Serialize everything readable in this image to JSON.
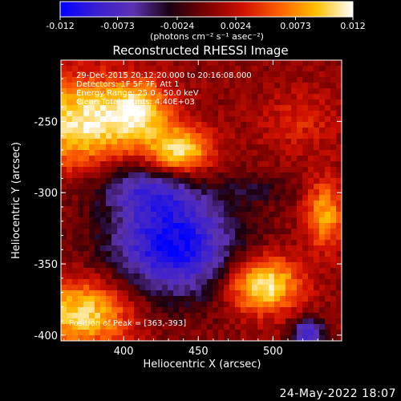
{
  "chart_data": {
    "type": "heatmap",
    "title": "Reconstructed RHESSI Image",
    "xlabel": "Heliocentric X (arcsec)",
    "ylabel": "Heliocentric Y (arcsec)",
    "xlim": [
      358,
      546
    ],
    "ylim": [
      -404,
      -207
    ],
    "x_ticks": [
      400,
      450,
      500
    ],
    "y_ticks": [
      -250,
      -300,
      -350,
      -400
    ],
    "colorbar": {
      "ticks": [
        "-0.012",
        "-0.0073",
        "-0.0024",
        "0.0024",
        "0.0073",
        "0.012"
      ],
      "tick_values": [
        -0.012,
        -0.0073,
        -0.0024,
        0.0024,
        0.0073,
        0.012
      ],
      "range": [
        -0.012,
        0.012
      ],
      "unit_label": "(photons cm⁻² s⁻¹ asec⁻²)"
    },
    "annotations": [
      "29-Dec-2015 20:12:20.000 to 20:16:08.000",
      "Detectors: 1F 5F 7F, Att 1",
      "Energy Range: 25.0 - 50.0 keV",
      "Clean    Total counts: 4.40E+03"
    ],
    "peak_label": "Position of Peak = [363,-393]",
    "colormap_stops": [
      "#0000ff",
      "#3a1fd0",
      "#5a32b0",
      "#1a0010",
      "#7a0000",
      "#d01000",
      "#ff6000",
      "#ffc000",
      "#ffffff"
    ]
  },
  "footer": {
    "date": "24-May-2022 18:07"
  }
}
